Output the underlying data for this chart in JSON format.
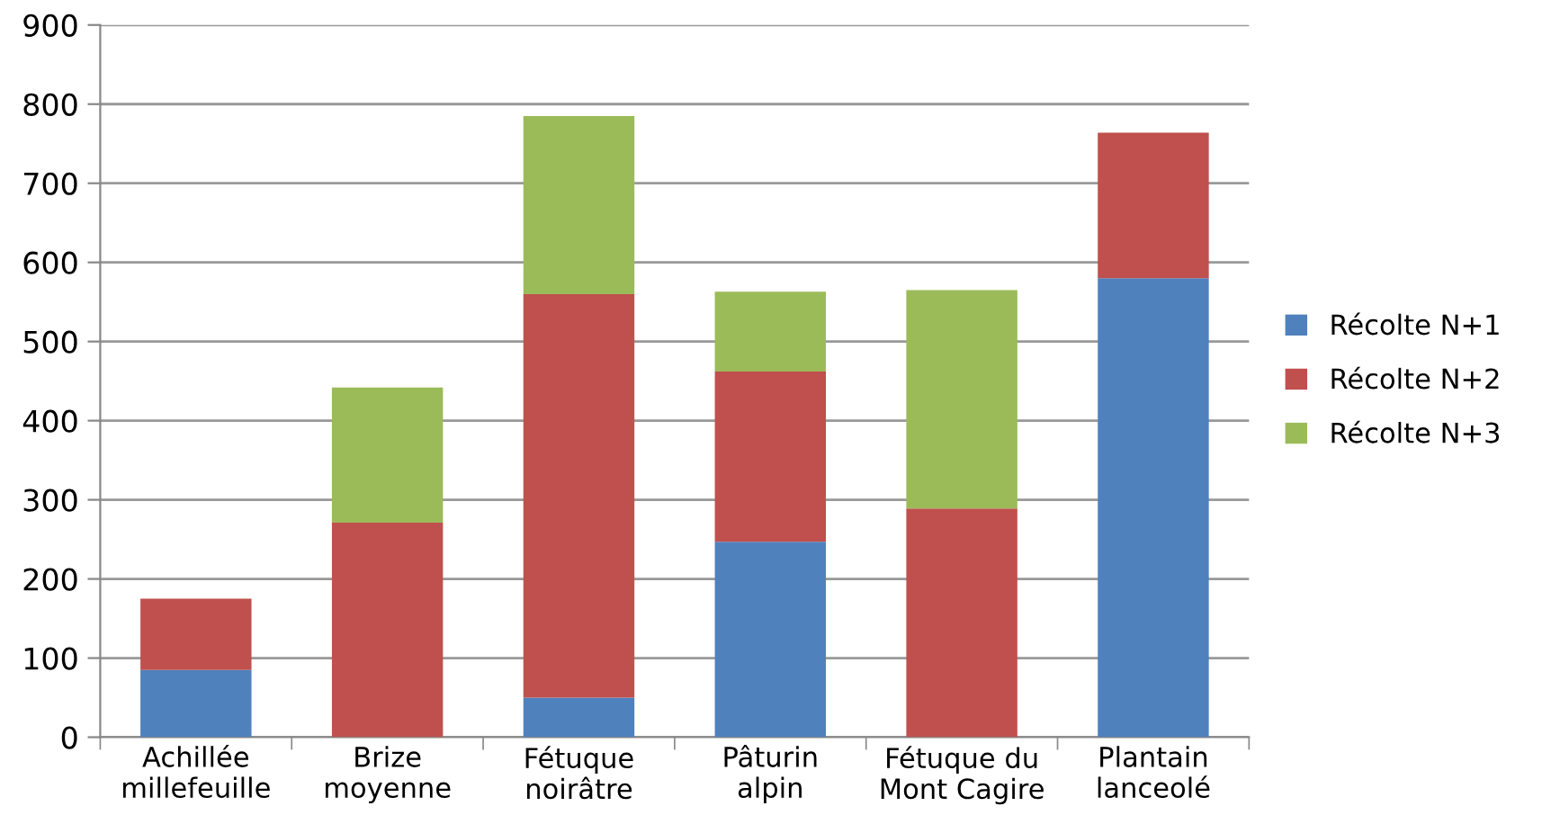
{
  "chart_data": {
    "type": "bar",
    "stacked": true,
    "categories": [
      "Achillée\nmillefeuille",
      "Brize\nmoyenne",
      "Fétuque\nnoirâtre",
      "Pâturin\nalpin",
      "Fétuque du\nMont Cagire",
      "Plantain\nlanceolé"
    ],
    "series": [
      {
        "name": "Récolte N+1",
        "color": "#4f81bd",
        "values": [
          85,
          0,
          50,
          247,
          0,
          580
        ]
      },
      {
        "name": "Récolte N+2",
        "color": "#c0504d",
        "values": [
          90,
          271,
          510,
          215,
          289,
          184
        ]
      },
      {
        "name": "Récolte N+3",
        "color": "#9bbb59",
        "values": [
          0,
          171,
          225,
          101,
          276,
          0
        ]
      }
    ],
    "ylim": [
      0,
      900
    ],
    "yticks": [
      0,
      100,
      200,
      300,
      400,
      500,
      600,
      700,
      800,
      900
    ],
    "grid": "y",
    "legend": "right"
  }
}
